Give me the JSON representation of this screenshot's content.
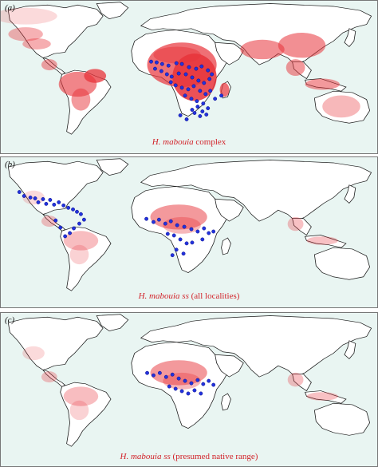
{
  "panels": [
    {
      "id": "a",
      "label": "(a)",
      "caption_species": "H. mabouia",
      "caption_rest": " complex",
      "suitability": "very-high",
      "points": [
        [
          189,
          77
        ],
        [
          196,
          78
        ],
        [
          203,
          80
        ],
        [
          211,
          82
        ],
        [
          221,
          79
        ],
        [
          228,
          80
        ],
        [
          237,
          84
        ],
        [
          246,
          86
        ],
        [
          253,
          83
        ],
        [
          261,
          88
        ],
        [
          266,
          93
        ],
        [
          194,
          86
        ],
        [
          202,
          89
        ],
        [
          209,
          93
        ],
        [
          215,
          96
        ],
        [
          224,
          92
        ],
        [
          233,
          93
        ],
        [
          241,
          97
        ],
        [
          249,
          101
        ],
        [
          256,
          104
        ],
        [
          263,
          99
        ],
        [
          214,
          103
        ],
        [
          220,
          107
        ],
        [
          228,
          110
        ],
        [
          236,
          112
        ],
        [
          243,
          108
        ],
        [
          251,
          114
        ],
        [
          258,
          118
        ],
        [
          264,
          114
        ],
        [
          232,
          120
        ],
        [
          240,
          124
        ],
        [
          247,
          127
        ],
        [
          255,
          130
        ],
        [
          248,
          134
        ],
        [
          241,
          138
        ],
        [
          254,
          140
        ],
        [
          261,
          136
        ],
        [
          244,
          142
        ],
        [
          251,
          146
        ],
        [
          259,
          144
        ],
        [
          226,
          145
        ],
        [
          234,
          150
        ],
        [
          270,
          124
        ],
        [
          278,
          120
        ]
      ]
    },
    {
      "id": "b",
      "label": "(b)",
      "caption_species": "H. mabouia ss",
      "caption_rest": " (all localities)",
      "suitability": "medium",
      "points": [
        [
          22,
          240
        ],
        [
          28,
          245
        ],
        [
          36,
          247
        ],
        [
          42,
          248
        ],
        [
          46,
          253
        ],
        [
          52,
          249
        ],
        [
          56,
          255
        ],
        [
          61,
          250
        ],
        [
          66,
          256
        ],
        [
          72,
          253
        ],
        [
          78,
          257
        ],
        [
          84,
          260
        ],
        [
          90,
          262
        ],
        [
          95,
          265
        ],
        [
          100,
          268
        ],
        [
          104,
          275
        ],
        [
          98,
          280
        ],
        [
          91,
          286
        ],
        [
          86,
          292
        ],
        [
          80,
          296
        ],
        [
          74,
          285
        ],
        [
          68,
          276
        ],
        [
          183,
          274
        ],
        [
          192,
          278
        ],
        [
          199,
          275
        ],
        [
          207,
          280
        ],
        [
          214,
          277
        ],
        [
          222,
          282
        ],
        [
          231,
          284
        ],
        [
          240,
          287
        ],
        [
          248,
          290
        ],
        [
          256,
          286
        ],
        [
          262,
          292
        ],
        [
          268,
          290
        ],
        [
          210,
          293
        ],
        [
          218,
          295
        ],
        [
          226,
          300
        ],
        [
          234,
          305
        ],
        [
          221,
          313
        ],
        [
          216,
          320
        ],
        [
          230,
          318
        ],
        [
          241,
          304
        ],
        [
          254,
          300
        ]
      ]
    },
    {
      "id": "c",
      "label": "(c)",
      "caption_species": "H. mabouia ss",
      "caption_rest": " (presumed native range)",
      "suitability": "medium",
      "points": [
        [
          184,
          467
        ],
        [
          192,
          470
        ],
        [
          200,
          467
        ],
        [
          208,
          472
        ],
        [
          216,
          469
        ],
        [
          224,
          474
        ],
        [
          232,
          477
        ],
        [
          240,
          480
        ],
        [
          248,
          476
        ],
        [
          255,
          481
        ],
        [
          262,
          477
        ],
        [
          268,
          482
        ],
        [
          212,
          484
        ],
        [
          220,
          487
        ],
        [
          228,
          490
        ],
        [
          236,
          493
        ],
        [
          244,
          489
        ],
        [
          252,
          493
        ]
      ]
    }
  ]
}
